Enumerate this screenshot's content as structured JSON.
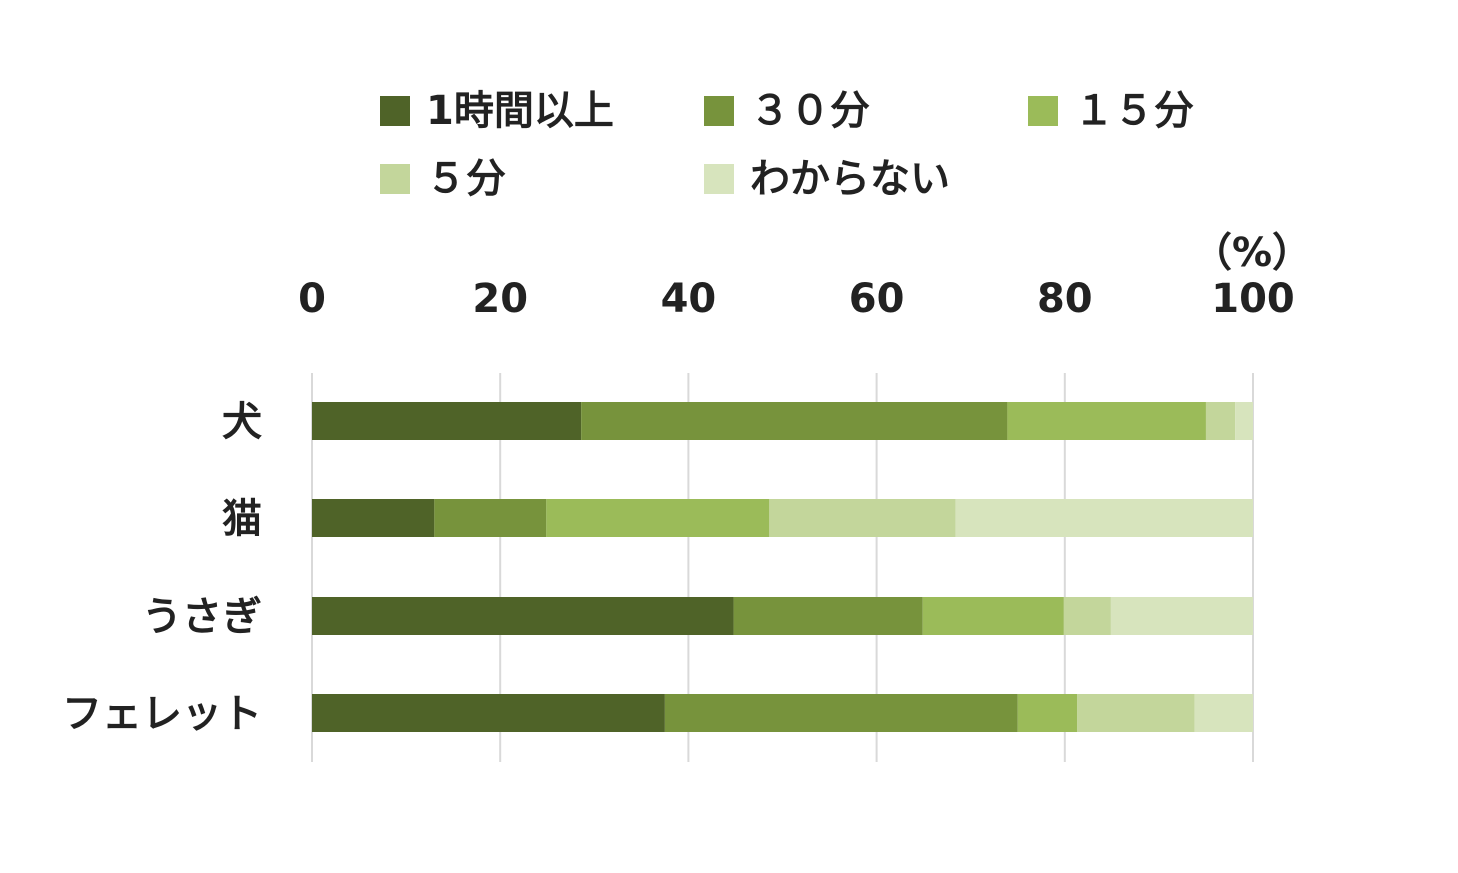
{
  "chart_data": {
    "type": "bar",
    "orientation": "horizontal",
    "stacked": true,
    "unit": "（%）",
    "xlim": [
      0,
      100
    ],
    "xticks": [
      0,
      20,
      40,
      60,
      80,
      100
    ],
    "grid": true,
    "legend_position": "top",
    "categories": [
      "犬",
      "猫",
      "うさぎ",
      "フェレット"
    ],
    "series": [
      {
        "name": "1時間以上",
        "color": "#4f6328",
        "values": [
          28.6,
          13.0,
          44.8,
          37.5
        ]
      },
      {
        "name": "３０分",
        "color": "#77933c",
        "values": [
          45.3,
          11.9,
          20.1,
          37.5
        ]
      },
      {
        "name": "１５分",
        "color": "#9bbb59",
        "values": [
          21.1,
          23.7,
          15.0,
          6.3
        ]
      },
      {
        "name": "５分",
        "color": "#c3d69b",
        "values": [
          3.1,
          19.8,
          5.0,
          12.5
        ]
      },
      {
        "name": "わからない",
        "color": "#d7e4bd",
        "values": [
          1.9,
          31.6,
          15.1,
          6.2
        ]
      }
    ]
  }
}
